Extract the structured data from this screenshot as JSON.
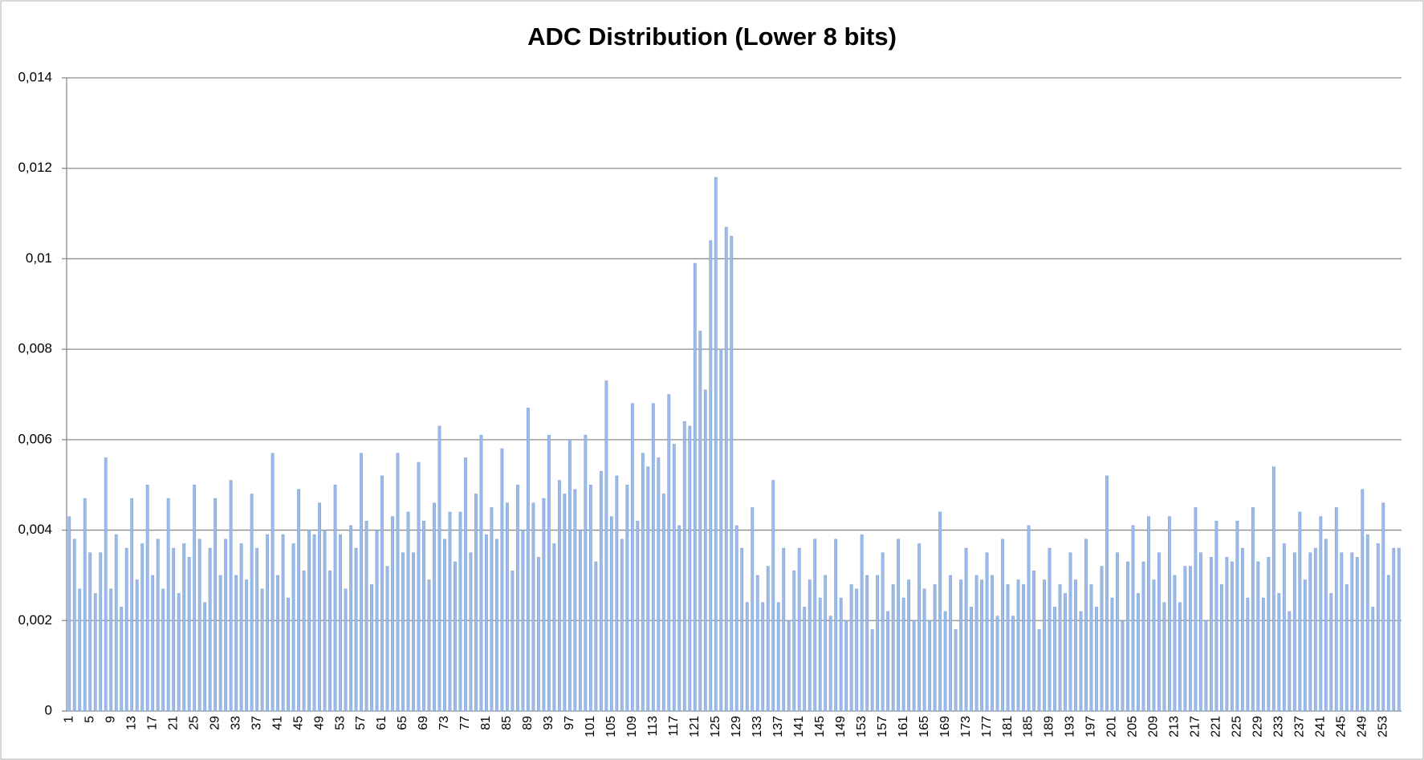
{
  "chart_data": {
    "type": "bar",
    "title": "ADC Distribution (Lower 8 bits)",
    "categories": [
      "1",
      null,
      null,
      null,
      "5",
      null,
      null,
      null,
      "9",
      null,
      null,
      null,
      "13",
      null,
      null,
      null,
      "17",
      null,
      null,
      null,
      "21",
      null,
      null,
      null,
      "25",
      null,
      null,
      null,
      "29",
      null,
      null,
      null,
      "33",
      null,
      null,
      null,
      "37",
      null,
      null,
      null,
      "41",
      null,
      null,
      null,
      "45",
      null,
      null,
      null,
      "49",
      null,
      null,
      null,
      "53",
      null,
      null,
      null,
      "57",
      null,
      null,
      null,
      "61",
      null,
      null,
      null,
      "65",
      null,
      null,
      null,
      "69",
      null,
      null,
      null,
      "73",
      null,
      null,
      null,
      "77",
      null,
      null,
      null,
      "81",
      null,
      null,
      null,
      "85",
      null,
      null,
      null,
      "89",
      null,
      null,
      null,
      "93",
      null,
      null,
      null,
      "97",
      null,
      null,
      null,
      "101",
      null,
      null,
      null,
      "105",
      null,
      null,
      null,
      "109",
      null,
      null,
      null,
      "113",
      null,
      null,
      null,
      "117",
      null,
      null,
      null,
      "121",
      null,
      null,
      null,
      "125",
      null,
      null,
      null,
      "129",
      null,
      null,
      null,
      "133",
      null,
      null,
      null,
      "137",
      null,
      null,
      null,
      "141",
      null,
      null,
      null,
      "145",
      null,
      null,
      null,
      "149",
      null,
      null,
      null,
      "153",
      null,
      null,
      null,
      "157",
      null,
      null,
      null,
      "161",
      null,
      null,
      null,
      "165",
      null,
      null,
      null,
      "169",
      null,
      null,
      null,
      "173",
      null,
      null,
      null,
      "177",
      null,
      null,
      null,
      "181",
      null,
      null,
      null,
      "185",
      null,
      null,
      null,
      "189",
      null,
      null,
      null,
      "193",
      null,
      null,
      null,
      "197",
      null,
      null,
      null,
      "201",
      null,
      null,
      null,
      "205",
      null,
      null,
      null,
      "209",
      null,
      null,
      null,
      "213",
      null,
      null,
      null,
      "217",
      null,
      null,
      null,
      "221",
      null,
      null,
      null,
      "225",
      null,
      null,
      null,
      "229",
      null,
      null,
      null,
      "233",
      null,
      null,
      null,
      "237",
      null,
      null,
      null,
      "241",
      null,
      null,
      null,
      "245",
      null,
      null,
      null,
      "249",
      null,
      null,
      null,
      "253",
      null,
      null,
      null
    ],
    "values": [
      0.0043,
      0.0038,
      0.0027,
      0.0047,
      0.0035,
      0.0026,
      0.0035,
      0.0056,
      0.0027,
      0.0039,
      0.0023,
      0.0036,
      0.0047,
      0.0029,
      0.0037,
      0.005,
      0.003,
      0.0038,
      0.0027,
      0.0047,
      0.0036,
      0.0026,
      0.0037,
      0.0034,
      0.005,
      0.0038,
      0.0024,
      0.0036,
      0.0047,
      0.003,
      0.0038,
      0.0051,
      0.003,
      0.0037,
      0.0029,
      0.0048,
      0.0036,
      0.0027,
      0.0039,
      0.0057,
      0.003,
      0.0039,
      0.0025,
      0.0037,
      0.0049,
      0.0031,
      0.004,
      0.0039,
      0.0046,
      0.004,
      0.0031,
      0.005,
      0.0039,
      0.0027,
      0.0041,
      0.0036,
      0.0057,
      0.0042,
      0.0028,
      0.004,
      0.0052,
      0.0032,
      0.0043,
      0.0057,
      0.0035,
      0.0044,
      0.0035,
      0.0055,
      0.0042,
      0.0029,
      0.0046,
      0.0063,
      0.0038,
      0.0044,
      0.0033,
      0.0044,
      0.0056,
      0.0035,
      0.0048,
      0.0061,
      0.0039,
      0.0045,
      0.0038,
      0.0058,
      0.0046,
      0.0031,
      0.005,
      0.004,
      0.0067,
      0.0046,
      0.0034,
      0.0047,
      0.0061,
      0.0037,
      0.0051,
      0.0048,
      0.006,
      0.0049,
      0.004,
      0.0061,
      0.005,
      0.0033,
      0.0053,
      0.0073,
      0.0043,
      0.0052,
      0.0038,
      0.005,
      0.0068,
      0.0042,
      0.0057,
      0.0054,
      0.0068,
      0.0056,
      0.0048,
      0.007,
      0.0059,
      0.0041,
      0.0064,
      0.0063,
      0.0099,
      0.0084,
      0.0071,
      0.0104,
      0.0118,
      0.008,
      0.0107,
      0.0105,
      0.0041,
      0.0036,
      0.0024,
      0.0045,
      0.003,
      0.0024,
      0.0032,
      0.0051,
      0.0024,
      0.0036,
      0.002,
      0.0031,
      0.0036,
      0.0023,
      0.0029,
      0.0038,
      0.0025,
      0.003,
      0.0021,
      0.0038,
      0.0025,
      0.002,
      0.0028,
      0.0027,
      0.0039,
      0.003,
      0.0018,
      0.003,
      0.0035,
      0.0022,
      0.0028,
      0.0038,
      0.0025,
      0.0029,
      0.002,
      0.0037,
      0.0027,
      0.002,
      0.0028,
      0.0044,
      0.0022,
      0.003,
      0.0018,
      0.0029,
      0.0036,
      0.0023,
      0.003,
      0.0029,
      0.0035,
      0.003,
      0.0021,
      0.0038,
      0.0028,
      0.0021,
      0.0029,
      0.0028,
      0.0041,
      0.0031,
      0.0018,
      0.0029,
      0.0036,
      0.0023,
      0.0028,
      0.0026,
      0.0035,
      0.0029,
      0.0022,
      0.0038,
      0.0028,
      0.0023,
      0.0032,
      0.0052,
      0.0025,
      0.0035,
      0.002,
      0.0033,
      0.0041,
      0.0026,
      0.0033,
      0.0043,
      0.0029,
      0.0035,
      0.0024,
      0.0043,
      0.003,
      0.0024,
      0.0032,
      0.0032,
      0.0045,
      0.0035,
      0.002,
      0.0034,
      0.0042,
      0.0028,
      0.0034,
      0.0033,
      0.0042,
      0.0036,
      0.0025,
      0.0045,
      0.0033,
      0.0025,
      0.0034,
      0.0054,
      0.0026,
      0.0037,
      0.0022,
      0.0035,
      0.0044,
      0.0029,
      0.0035,
      0.0036,
      0.0043,
      0.0038,
      0.0026,
      0.0045,
      0.0035,
      0.0028,
      0.0035,
      0.0034,
      0.0049,
      0.0039,
      0.0023,
      0.0037,
      0.0046,
      0.003,
      0.0036,
      0.0036
    ],
    "color": "#9dbbe6",
    "ylim": [
      0,
      0.014
    ],
    "yticks": [
      0,
      {
        "value": 0.002,
        "label": "0,002"
      },
      {
        "value": 0.004,
        "label": "0,004"
      },
      {
        "value": 0.006,
        "label": "0,006"
      },
      {
        "value": 0.008,
        "label": "0,008"
      },
      {
        "value": 0.01,
        "label": "0,01"
      },
      {
        "value": 0.012,
        "label": "0,012"
      },
      {
        "value": 0.014,
        "label": "0,014"
      }
    ],
    "grid": true
  }
}
